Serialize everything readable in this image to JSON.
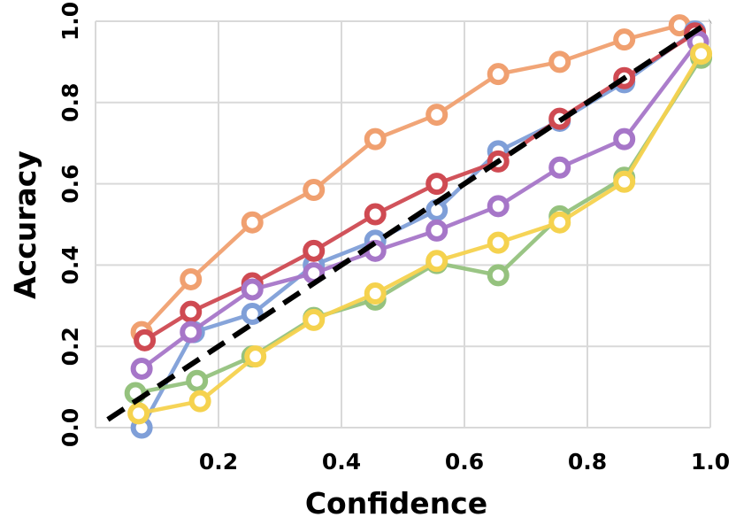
{
  "chart_data": {
    "type": "line",
    "title": "",
    "xlabel": "Confidence",
    "ylabel": "Accuracy",
    "xlim": [
      0.0,
      1.0
    ],
    "ylim": [
      0.0,
      1.0
    ],
    "xticks": [
      0.2,
      0.4,
      0.6,
      0.8,
      1.0
    ],
    "xtick_labels": [
      "0.2",
      "0.4",
      "0.6",
      "0.8",
      "1.0"
    ],
    "yticks": [
      0.0,
      0.2,
      0.4,
      0.6,
      0.8,
      1.0
    ],
    "ytick_labels": [
      "0.0",
      "0.2",
      "0.4",
      "0.6",
      "0.8",
      "1.0"
    ],
    "grid": true,
    "reference_line": {
      "name": "perfect-calibration",
      "style": "dashed",
      "color": "#000000",
      "x": [
        0.02,
        1.0
      ],
      "y": [
        0.02,
        1.0
      ]
    },
    "series": [
      {
        "name": "orange",
        "color": "#f0a070",
        "x": [
          0.075,
          0.155,
          0.255,
          0.355,
          0.455,
          0.555,
          0.655,
          0.755,
          0.86,
          0.95
        ],
        "y": [
          0.235,
          0.365,
          0.505,
          0.585,
          0.71,
          0.77,
          0.87,
          0.9,
          0.955,
          0.99
        ]
      },
      {
        "name": "blue",
        "color": "#7f9fd8",
        "x": [
          0.075,
          0.16,
          0.255,
          0.355,
          0.455,
          0.555,
          0.655,
          0.755,
          0.86,
          0.975
        ],
        "y": [
          0.0,
          0.235,
          0.28,
          0.4,
          0.46,
          0.535,
          0.68,
          0.755,
          0.85,
          0.975
        ]
      },
      {
        "name": "red",
        "color": "#cf4a52",
        "x": [
          0.08,
          0.155,
          0.255,
          0.355,
          0.455,
          0.555,
          0.655,
          0.755,
          0.86,
          0.975
        ],
        "y": [
          0.215,
          0.285,
          0.355,
          0.435,
          0.525,
          0.6,
          0.655,
          0.76,
          0.86,
          0.97
        ]
      },
      {
        "name": "purple",
        "color": "#a676c8",
        "x": [
          0.075,
          0.155,
          0.255,
          0.355,
          0.455,
          0.555,
          0.655,
          0.755,
          0.86,
          0.98
        ],
        "y": [
          0.145,
          0.235,
          0.34,
          0.38,
          0.435,
          0.485,
          0.545,
          0.64,
          0.71,
          0.95
        ]
      },
      {
        "name": "green",
        "color": "#95c27e",
        "x": [
          0.065,
          0.165,
          0.255,
          0.355,
          0.455,
          0.555,
          0.655,
          0.755,
          0.86,
          0.985
        ],
        "y": [
          0.085,
          0.115,
          0.175,
          0.27,
          0.315,
          0.405,
          0.375,
          0.52,
          0.615,
          0.91
        ]
      },
      {
        "name": "yellow",
        "color": "#f5d24e",
        "x": [
          0.07,
          0.17,
          0.26,
          0.355,
          0.455,
          0.555,
          0.655,
          0.755,
          0.86,
          0.985
        ],
        "y": [
          0.035,
          0.065,
          0.175,
          0.265,
          0.33,
          0.41,
          0.455,
          0.505,
          0.605,
          0.92
        ]
      }
    ]
  }
}
